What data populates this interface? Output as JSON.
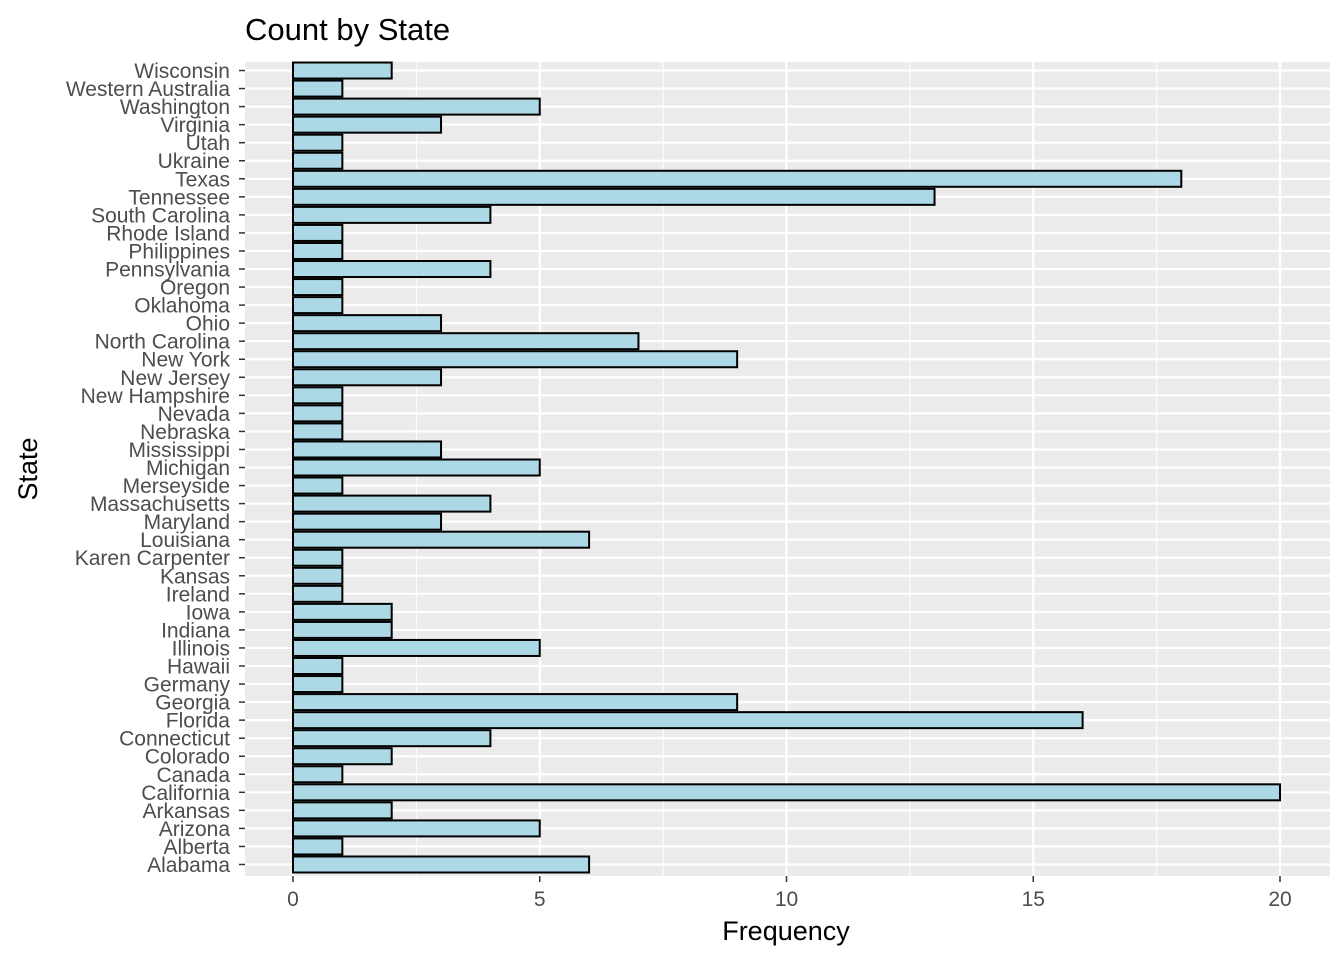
{
  "chart_data": {
    "type": "bar",
    "orientation": "horizontal",
    "title": "Count by State",
    "xlabel": "Frequency",
    "ylabel": "State",
    "xlim": [
      0,
      20
    ],
    "x_ticks": [
      0,
      5,
      10,
      15,
      20
    ],
    "grid": true,
    "colors": {
      "panel_background": "#ebebeb",
      "grid": "#ffffff",
      "bar_fill": "#add8e6",
      "bar_outline": "#000000"
    },
    "categories": [
      "Alabama",
      "Alberta",
      "Arizona",
      "Arkansas",
      "California",
      "Canada",
      "Colorado",
      "Connecticut",
      "Florida",
      "Georgia",
      "Germany",
      "Hawaii",
      "Illinois",
      "Indiana",
      "Iowa",
      "Ireland",
      "Kansas",
      "Karen Carpenter",
      "Louisiana",
      "Maryland",
      "Massachusetts",
      "Merseyside",
      "Michigan",
      "Mississippi",
      "Nebraska",
      "Nevada",
      "New Hampshire",
      "New Jersey",
      "New York",
      "North Carolina",
      "Ohio",
      "Oklahoma",
      "Oregon",
      "Pennsylvania",
      "Philippines",
      "Rhode Island",
      "South Carolina",
      "Tennessee",
      "Texas",
      "Ukraine",
      "Utah",
      "Virginia",
      "Washington",
      "Western Australia",
      "Wisconsin"
    ],
    "values": [
      6,
      1,
      5,
      2,
      20,
      1,
      2,
      4,
      16,
      9,
      1,
      1,
      5,
      2,
      2,
      1,
      1,
      1,
      6,
      3,
      4,
      1,
      5,
      3,
      1,
      1,
      1,
      3,
      9,
      7,
      3,
      1,
      1,
      4,
      1,
      1,
      4,
      13,
      18,
      1,
      1,
      3,
      5,
      1,
      2
    ]
  }
}
